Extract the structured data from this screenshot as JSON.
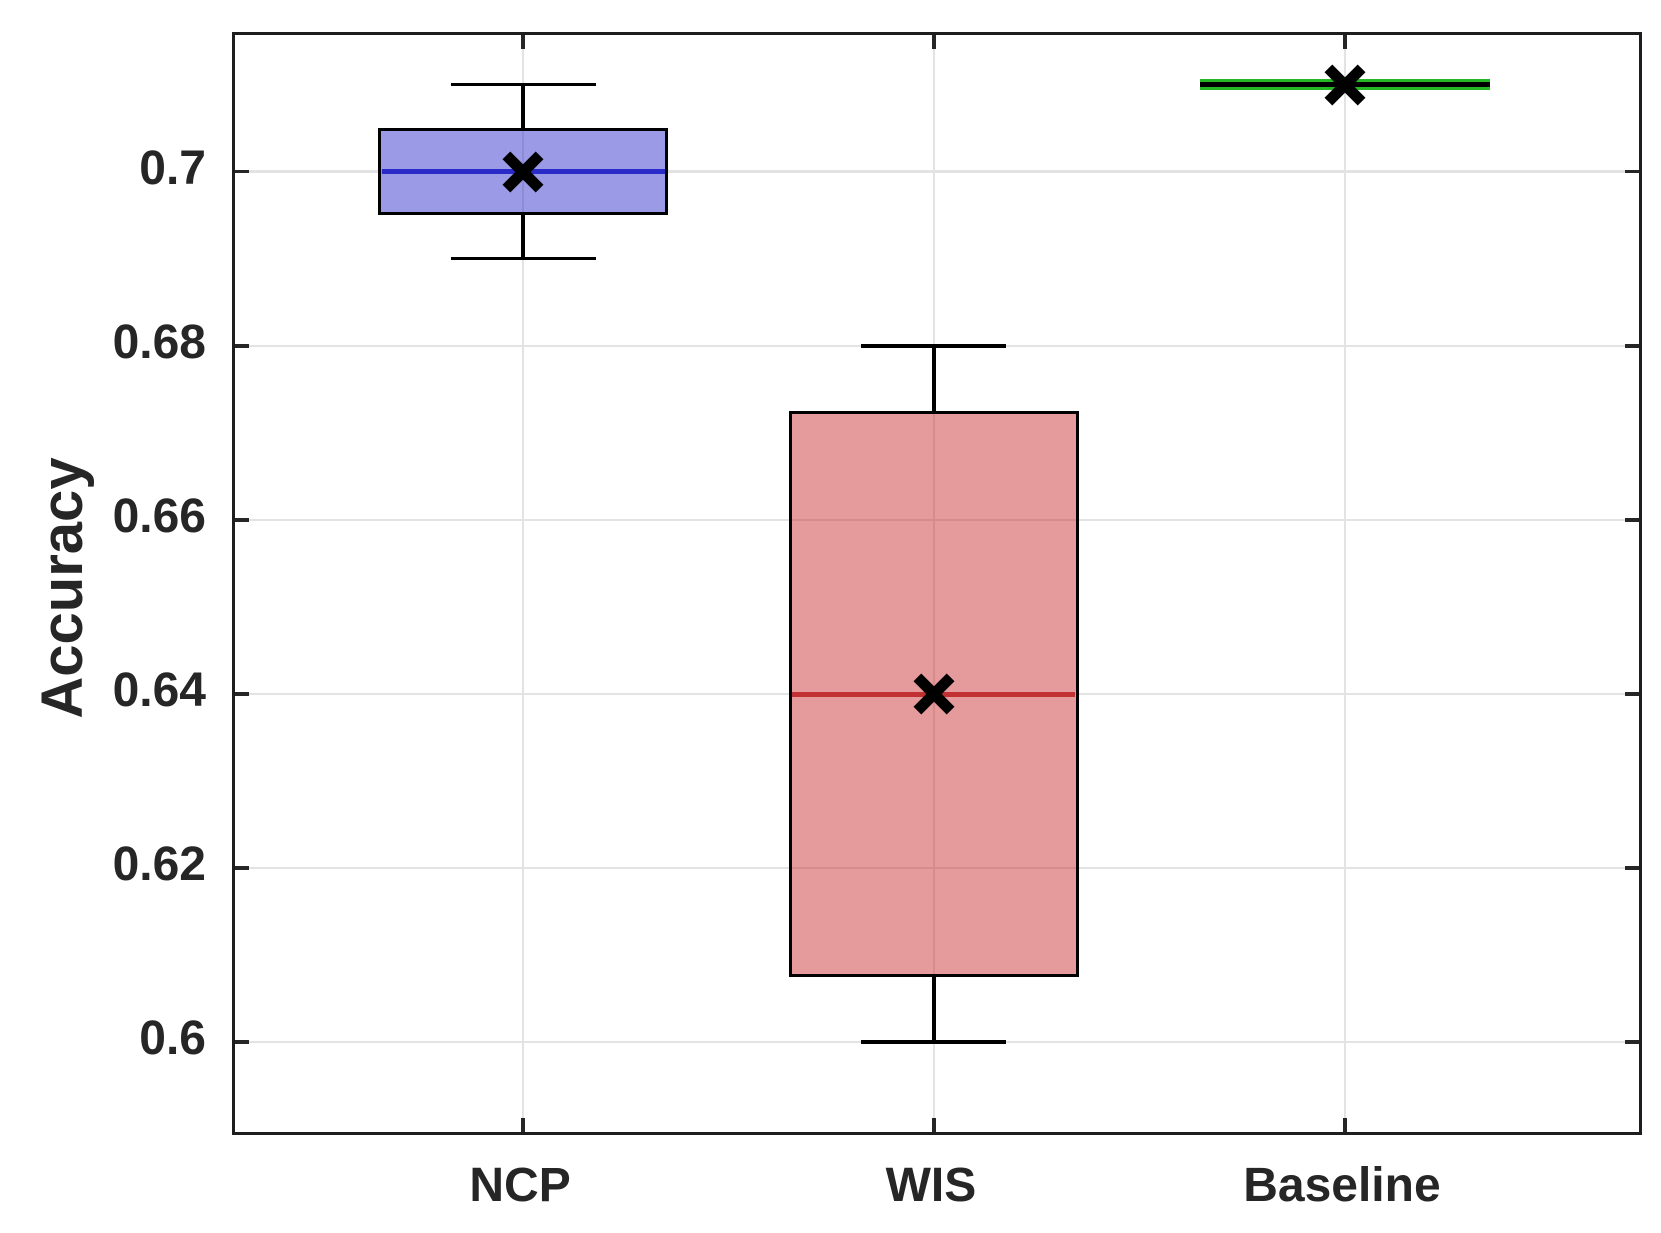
{
  "chart_data": {
    "type": "box",
    "title": "",
    "ylabel": "Accuracy",
    "xlabel": "",
    "grid": true,
    "legend": "none",
    "categories": [
      "NCP",
      "WIS",
      "Baseline"
    ],
    "ylim": [
      0.589,
      0.7157
    ],
    "yticks": [
      {
        "value": 0.7,
        "label": "0.7"
      },
      {
        "value": 0.68,
        "label": "0.68"
      },
      {
        "value": 0.66,
        "label": "0.66"
      },
      {
        "value": 0.64,
        "label": "0.64"
      },
      {
        "value": 0.62,
        "label": "0.62"
      },
      {
        "value": 0.6,
        "label": "0.6"
      }
    ],
    "series": [
      {
        "name": "NCP",
        "min": 0.69,
        "q1": 0.695,
        "median": 0.7,
        "q3": 0.705,
        "max": 0.71,
        "mean": 0.7,
        "fill_color": "rgba(40,40,205,0.47)",
        "median_color": "#2a2ac8",
        "flat": false
      },
      {
        "name": "WIS",
        "min": 0.6,
        "q1": 0.6075,
        "median": 0.64,
        "q3": 0.6725,
        "max": 0.68,
        "mean": 0.64,
        "fill_color": "rgba(200,40,44,0.47)",
        "median_color": "#c13032",
        "flat": false
      },
      {
        "name": "Baseline",
        "min": 0.71,
        "q1": 0.71,
        "median": 0.71,
        "q3": 0.71,
        "max": 0.71,
        "mean": 0.71,
        "fill_color": "#25b825",
        "median_color": "#25b825",
        "flat": true
      }
    ],
    "mean_marker": {
      "shape": "x",
      "color": "#000000",
      "size": 38
    },
    "colors": {
      "axis_border": "#1e1e1e",
      "tick_color": "#262626",
      "text_color": "#262626",
      "gridline_color": "#e3e3e3",
      "box_edge_color": "#000000",
      "whisker_color": "#000000",
      "background": "#ffffff"
    }
  }
}
